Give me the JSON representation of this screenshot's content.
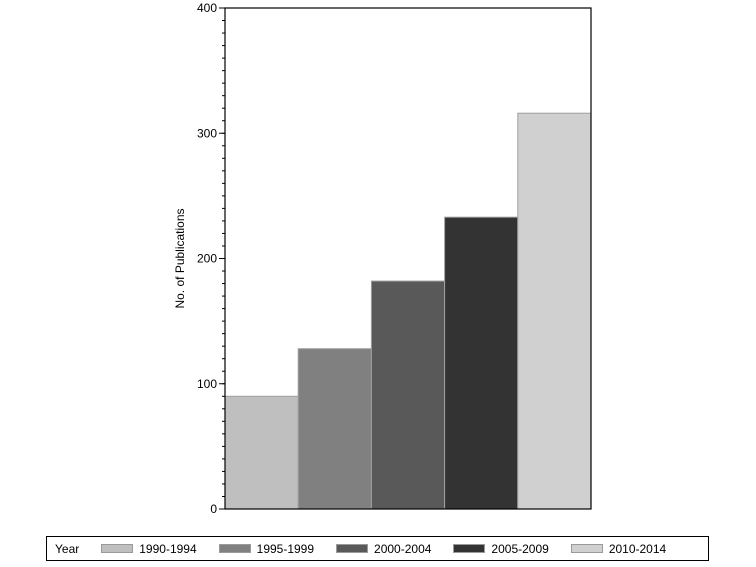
{
  "chart_data": {
    "type": "bar",
    "title": "",
    "xlabel": "",
    "ylabel": "No. of Publications",
    "ylim": [
      0,
      400
    ],
    "yticks": [
      0,
      100,
      200,
      300,
      400
    ],
    "minor_ticks_per_major": 10,
    "grid": false,
    "legend_position": "bottom",
    "legend_title": "Year",
    "categories": [
      "1990-1994",
      "1995-1999",
      "2000-2004",
      "2005-2009",
      "2010-2014"
    ],
    "values": [
      90,
      128,
      182,
      233,
      316
    ],
    "colors": [
      "#bfbfbf",
      "#808080",
      "#595959",
      "#333333",
      "#d0d0d0"
    ]
  },
  "legend": {
    "title": "Year",
    "items": [
      {
        "label": "1990-1994",
        "color": "#bfbfbf"
      },
      {
        "label": "1995-1999",
        "color": "#808080"
      },
      {
        "label": "2000-2004",
        "color": "#595959"
      },
      {
        "label": "2005-2009",
        "color": "#333333"
      },
      {
        "label": "2010-2014",
        "color": "#d0d0d0"
      }
    ]
  }
}
